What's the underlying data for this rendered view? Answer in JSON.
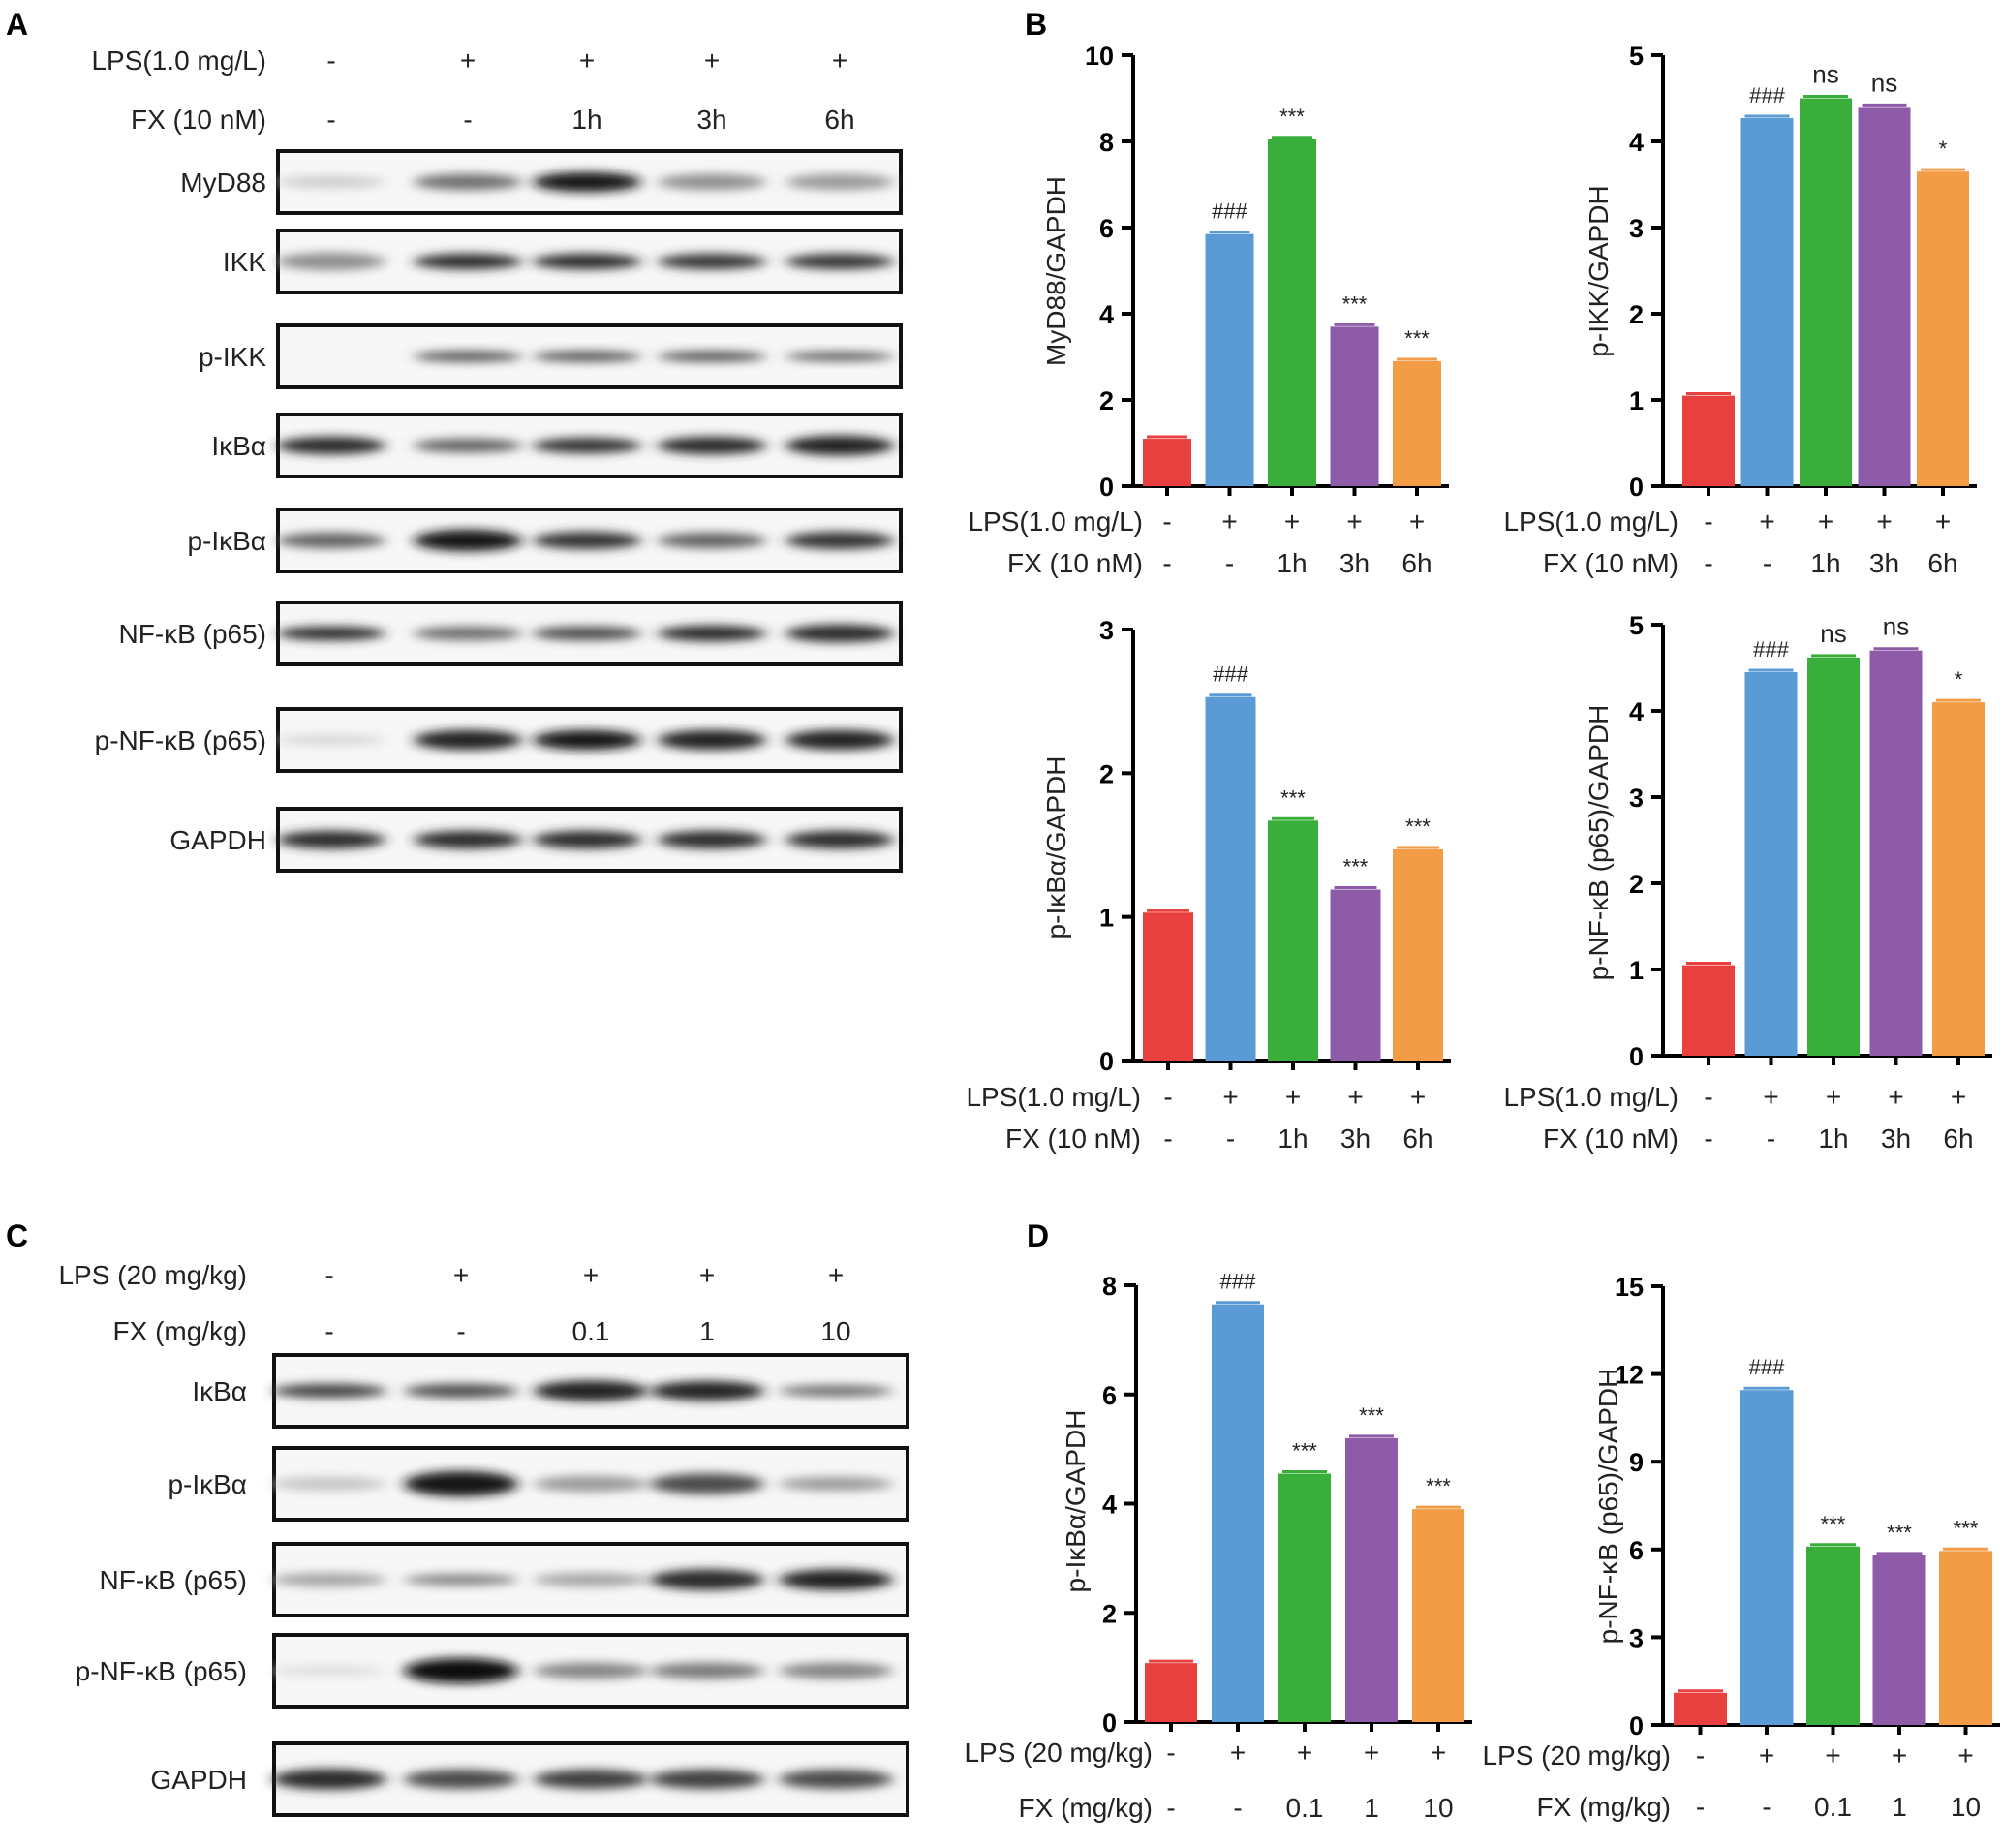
{
  "panel_labels": {
    "A": "A",
    "B": "B",
    "C": "C",
    "D": "D"
  },
  "colors": {
    "red": "#e8403e",
    "blue": "#5b9bd5",
    "green": "#3aae3a",
    "purple": "#8e5ba8",
    "orange": "#f39c46",
    "axis": "#000000",
    "band": "#1a1a1a"
  },
  "blot_A": {
    "conditions": [
      {
        "label": "LPS(1.0 mg/L)",
        "values": [
          "-",
          "+",
          "+",
          "+",
          "+"
        ]
      },
      {
        "label": "FX (10 nM)",
        "values": [
          "-",
          "-",
          "1h",
          "3h",
          "6h"
        ]
      }
    ],
    "rows": [
      {
        "label": "MyD88",
        "intensity": [
          0.12,
          0.55,
          0.95,
          0.4,
          0.35
        ],
        "thick": [
          0.6,
          0.8,
          1.0,
          0.8,
          0.8
        ]
      },
      {
        "label": "IKK",
        "intensity": [
          0.4,
          0.85,
          0.85,
          0.8,
          0.8
        ],
        "thick": [
          0.9,
          0.8,
          0.8,
          0.8,
          0.8
        ]
      },
      {
        "label": "p-IKK",
        "intensity": [
          0.0,
          0.65,
          0.65,
          0.65,
          0.6
        ],
        "thick": [
          0.5,
          0.55,
          0.55,
          0.55,
          0.5
        ]
      },
      {
        "label": "IκBα",
        "intensity": [
          0.85,
          0.6,
          0.8,
          0.85,
          0.9
        ],
        "thick": [
          0.9,
          0.7,
          0.8,
          0.9,
          1.0
        ]
      },
      {
        "label": "p-IκBα",
        "intensity": [
          0.6,
          0.95,
          0.8,
          0.6,
          0.8
        ],
        "thick": [
          0.8,
          1.1,
          0.9,
          0.8,
          0.9
        ]
      },
      {
        "label": "NF-κB (p65)",
        "intensity": [
          0.85,
          0.55,
          0.7,
          0.85,
          0.85
        ],
        "thick": [
          0.7,
          0.7,
          0.7,
          0.8,
          0.9
        ]
      },
      {
        "label": "p-NF-κB (p65)",
        "intensity": [
          0.08,
          0.9,
          0.95,
          0.9,
          0.9
        ],
        "thick": [
          0.5,
          1.0,
          1.0,
          1.0,
          1.0
        ]
      },
      {
        "label": "GAPDH",
        "intensity": [
          0.85,
          0.85,
          0.85,
          0.85,
          0.85
        ],
        "thick": [
          0.9,
          0.9,
          0.9,
          0.9,
          0.9
        ]
      }
    ]
  },
  "blot_C": {
    "conditions": [
      {
        "label": "LPS (20 mg/kg)",
        "values": [
          "-",
          "+",
          "+",
          "+",
          "+"
        ]
      },
      {
        "label": "FX (mg/kg)",
        "values": [
          "-",
          "-",
          "0.1",
          "1",
          "10"
        ]
      }
    ],
    "rows": [
      {
        "label": "IκBα",
        "intensity": [
          0.75,
          0.7,
          0.9,
          0.9,
          0.55
        ],
        "thick": [
          0.6,
          0.6,
          0.9,
          0.85,
          0.5
        ]
      },
      {
        "label": "p-IκBα",
        "intensity": [
          0.15,
          0.95,
          0.35,
          0.7,
          0.35
        ],
        "thick": [
          0.6,
          1.1,
          0.7,
          0.9,
          0.6
        ]
      },
      {
        "label": "NF-κB (p65)",
        "intensity": [
          0.3,
          0.45,
          0.3,
          0.85,
          0.9
        ],
        "thick": [
          0.6,
          0.5,
          0.6,
          0.9,
          0.9
        ]
      },
      {
        "label": "p-NF-κB (p65)",
        "intensity": [
          0.03,
          0.98,
          0.45,
          0.5,
          0.45
        ],
        "thick": [
          0.5,
          1.1,
          0.7,
          0.7,
          0.7
        ]
      },
      {
        "label": "GAPDH",
        "intensity": [
          0.85,
          0.7,
          0.75,
          0.75,
          0.7
        ],
        "thick": [
          0.9,
          0.85,
          0.85,
          0.85,
          0.85
        ]
      }
    ]
  },
  "chart_data": [
    {
      "type": "bar",
      "panel": "B",
      "ylabel": "MyD88/GAPDH",
      "ylim": [
        0,
        10
      ],
      "yticks": [
        0,
        2,
        4,
        6,
        8,
        10
      ],
      "values": [
        1.1,
        5.85,
        8.05,
        3.7,
        2.9
      ],
      "annotations": [
        "",
        "###",
        "***",
        "***",
        "***"
      ],
      "condition_rows": [
        {
          "label": "LPS(1.0 mg/L)",
          "values": [
            "-",
            "+",
            "+",
            "+",
            "+"
          ]
        },
        {
          "label": "FX (10 nM)",
          "values": [
            "-",
            "-",
            "1h",
            "3h",
            "6h"
          ]
        }
      ]
    },
    {
      "type": "bar",
      "panel": "B",
      "ylabel": "p-IKK/GAPDH",
      "ylim": [
        0,
        5
      ],
      "yticks": [
        0,
        1,
        2,
        3,
        4,
        5
      ],
      "values": [
        1.05,
        4.27,
        4.5,
        4.4,
        3.65
      ],
      "annotations": [
        "",
        "###",
        "ns",
        "ns",
        "*"
      ],
      "condition_rows": [
        {
          "label": "LPS(1.0 mg/L)",
          "values": [
            "-",
            "+",
            "+",
            "+",
            "+"
          ]
        },
        {
          "label": "FX (10 nM)",
          "values": [
            "-",
            "-",
            "1h",
            "3h",
            "6h"
          ]
        }
      ]
    },
    {
      "type": "bar",
      "panel": "B",
      "ylabel": "p-IκBα/GAPDH",
      "ylim": [
        0,
        3
      ],
      "yticks": [
        0,
        1,
        2,
        3
      ],
      "values": [
        1.03,
        2.53,
        1.67,
        1.19,
        1.47
      ],
      "annotations": [
        "",
        "###",
        "***",
        "***",
        "***"
      ],
      "condition_rows": [
        {
          "label": "LPS(1.0 mg/L)",
          "values": [
            "-",
            "+",
            "+",
            "+",
            "+"
          ]
        },
        {
          "label": "FX (10 nM)",
          "values": [
            "-",
            "-",
            "1h",
            "3h",
            "6h"
          ]
        }
      ]
    },
    {
      "type": "bar",
      "panel": "B",
      "ylabel": "p-NF-κB (p65)/GAPDH",
      "ylim": [
        0,
        5
      ],
      "yticks": [
        0,
        1,
        2,
        3,
        4,
        5
      ],
      "values": [
        1.05,
        4.45,
        4.62,
        4.7,
        4.1
      ],
      "annotations": [
        "",
        "###",
        "ns",
        "ns",
        "*"
      ],
      "condition_rows": [
        {
          "label": "LPS(1.0 mg/L)",
          "values": [
            "-",
            "+",
            "+",
            "+",
            "+"
          ]
        },
        {
          "label": "FX (10 nM)",
          "values": [
            "-",
            "-",
            "1h",
            "3h",
            "6h"
          ]
        }
      ]
    },
    {
      "type": "bar",
      "panel": "D",
      "ylabel": "p-IκBα/GAPDH",
      "ylim": [
        0,
        8
      ],
      "yticks": [
        0,
        2,
        4,
        6,
        8
      ],
      "values": [
        1.08,
        7.65,
        4.55,
        5.2,
        3.9
      ],
      "annotations": [
        "",
        "###",
        "***",
        "***",
        "***"
      ],
      "condition_rows": [
        {
          "label": "LPS (20 mg/kg)",
          "values": [
            "-",
            "+",
            "+",
            "+",
            "+"
          ]
        },
        {
          "label": "FX (mg/kg)",
          "values": [
            "-",
            "-",
            "0.1",
            "1",
            "10"
          ]
        }
      ]
    },
    {
      "type": "bar",
      "panel": "D",
      "ylabel": "p-NF-κB (p65)/GAPDH",
      "ylim": [
        0,
        15
      ],
      "yticks": [
        0,
        3,
        6,
        9,
        12,
        15
      ],
      "values": [
        1.1,
        11.45,
        6.1,
        5.8,
        5.95
      ],
      "annotations": [
        "",
        "###",
        "***",
        "***",
        "***"
      ],
      "condition_rows": [
        {
          "label": "LPS (20 mg/kg)",
          "values": [
            "-",
            "+",
            "+",
            "+",
            "+"
          ]
        },
        {
          "label": "FX (mg/kg)",
          "values": [
            "-",
            "-",
            "0.1",
            "1",
            "10"
          ]
        }
      ]
    }
  ]
}
